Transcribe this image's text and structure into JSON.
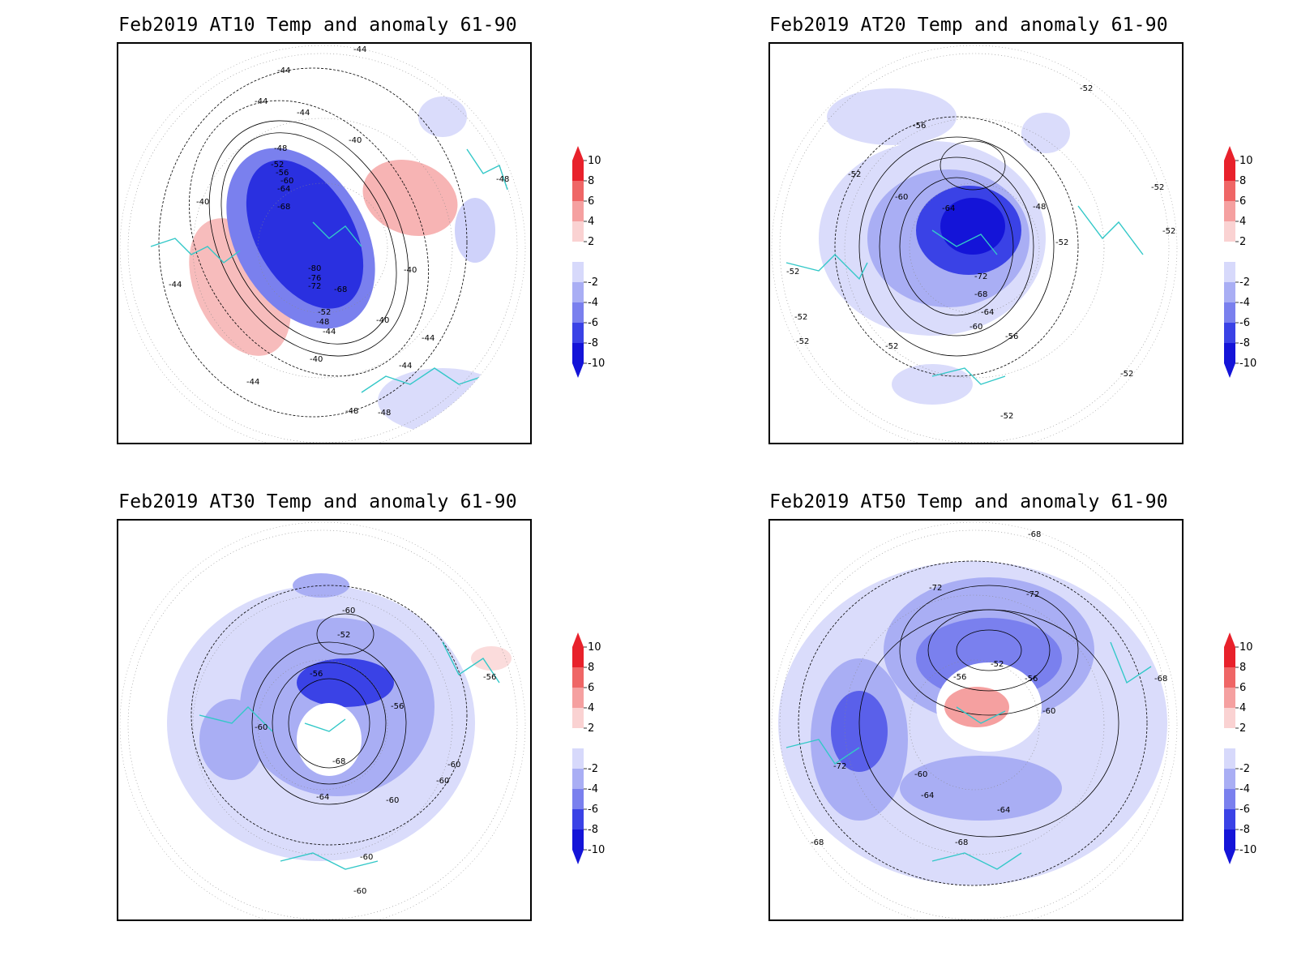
{
  "panels": [
    {
      "title": "Feb2019 AT10 Temp and anomaly 61-90",
      "contour_labels": [
        "-44",
        "-44",
        "-44",
        "-44",
        "-40",
        "-48",
        "-52",
        "-56",
        "-60",
        "-64",
        "-68",
        "-40",
        "-48",
        "-40",
        "-44",
        "-80",
        "-76",
        "-72",
        "-68",
        "-52",
        "-48",
        "-44",
        "-40",
        "-40",
        "-44",
        "-44",
        "-44",
        "-48",
        "-48"
      ]
    },
    {
      "title": "Feb2019 AT20 Temp and anomaly 61-90",
      "contour_labels": [
        "-52",
        "-56",
        "-52",
        "-60",
        "-64",
        "-48",
        "-52",
        "-52",
        "-52",
        "-72",
        "-68",
        "-64",
        "-60",
        "-56",
        "-52",
        "-52",
        "-52",
        "-52",
        "-52",
        "-52"
      ]
    },
    {
      "title": "Feb2019 AT30 Temp and anomaly 61-90",
      "contour_labels": [
        "-60",
        "-52",
        "-56",
        "-56",
        "-56",
        "-60",
        "-68",
        "-64",
        "-60",
        "-60",
        "-60",
        "-60",
        "-60"
      ]
    },
    {
      "title": "Feb2019 AT50 Temp and anomaly 61-90",
      "contour_labels": [
        "-68",
        "-72",
        "-72",
        "-52",
        "-56",
        "-56",
        "-60",
        "-68",
        "-72",
        "-60",
        "-64",
        "-64",
        "-68",
        "-68"
      ]
    }
  ],
  "colorbar": {
    "labels": [
      "10",
      "8",
      "6",
      "4",
      "2",
      "-2",
      "-4",
      "-6",
      "-8",
      "-10"
    ],
    "colors": [
      "#e8212b",
      "#ef6666",
      "#f5a0a0",
      "#fad2d2",
      "#ffffff",
      "#d7d9fb",
      "#a9aef4",
      "#7a80ee",
      "#3a42e6",
      "#1414d8"
    ]
  },
  "coastline_color": "#33c8c8"
}
